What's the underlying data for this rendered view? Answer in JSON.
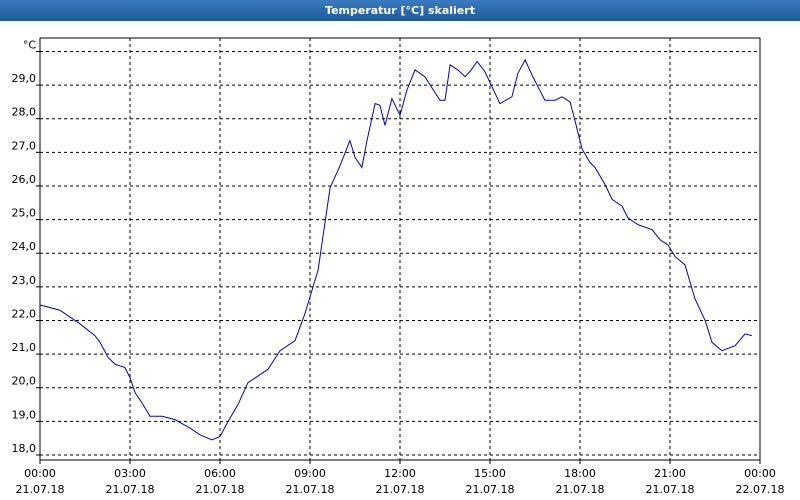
{
  "chart_data": {
    "type": "line",
    "title": "Temperatur [°C] skaliert",
    "x": [
      0,
      0.27,
      0.67,
      1.0,
      1.33,
      1.83,
      2.0,
      2.27,
      2.5,
      2.83,
      3.0,
      3.17,
      3.4,
      3.67,
      4.07,
      4.5,
      5.0,
      5.33,
      5.73,
      6.0,
      6.27,
      6.6,
      6.93,
      7.27,
      7.6,
      8.0,
      8.5,
      8.83,
      9.27,
      9.67,
      10.0,
      10.33,
      10.5,
      10.73,
      10.9,
      11.17,
      11.33,
      11.5,
      11.73,
      12.0,
      12.23,
      12.5,
      12.83,
      13.33,
      13.5,
      13.67,
      13.93,
      14.17,
      14.33,
      14.57,
      14.83,
      15.33,
      15.73,
      15.93,
      16.17,
      16.4,
      16.57,
      16.83,
      17.17,
      17.4,
      17.67,
      17.83,
      18.07,
      18.33,
      18.5,
      18.83,
      19.07,
      19.4,
      19.6,
      19.93,
      20.4,
      20.67,
      20.93,
      21.17,
      21.5,
      21.83,
      22.17,
      22.4,
      22.73,
      23.17,
      23.5,
      23.73
    ],
    "values": [
      22.46,
      22.4,
      22.3,
      22.1,
      21.9,
      21.55,
      21.35,
      20.9,
      20.7,
      20.6,
      20.3,
      19.85,
      19.55,
      19.15,
      19.15,
      19.05,
      18.8,
      18.6,
      18.45,
      18.55,
      19.0,
      19.5,
      20.15,
      20.35,
      20.55,
      21.1,
      21.4,
      22.2,
      23.5,
      25.95,
      26.6,
      27.35,
      26.85,
      26.55,
      27.35,
      28.45,
      28.4,
      27.8,
      28.6,
      28.1,
      28.85,
      29.45,
      29.25,
      28.55,
      28.55,
      29.6,
      29.45,
      29.25,
      29.4,
      29.7,
      29.4,
      28.45,
      28.65,
      29.35,
      29.75,
      29.3,
      29.0,
      28.55,
      28.55,
      28.65,
      28.5,
      27.95,
      27.1,
      26.7,
      26.55,
      26.05,
      25.6,
      25.4,
      25.05,
      24.85,
      24.7,
      24.4,
      24.25,
      23.9,
      23.65,
      22.65,
      22.0,
      21.35,
      21.1,
      21.25,
      21.6,
      21.55
    ],
    "color": "#0000cc",
    "xlim": [
      0,
      24
    ],
    "xticks": [
      {
        "value": 0,
        "label": "00:00"
      },
      {
        "value": 3,
        "label": "03:00"
      },
      {
        "value": 6,
        "label": "06:00"
      },
      {
        "value": 9,
        "label": "09:00"
      },
      {
        "value": 12,
        "label": "12:00"
      },
      {
        "value": 15,
        "label": "15:00"
      },
      {
        "value": 18,
        "label": "18:00"
      },
      {
        "value": 21,
        "label": "21:00"
      },
      {
        "value": 24,
        "label": "00:00"
      }
    ],
    "xtick_dates": [
      "21.07.18",
      "21.07.18",
      "21.07.18",
      "21.07.18",
      "21.07.18",
      "21.07.18",
      "21.07.18",
      "21.07.18",
      "22.07.18"
    ],
    "ylim": [
      17.85,
      30.4
    ],
    "yticks": [
      {
        "value": 18,
        "label": "18,0"
      },
      {
        "value": 19,
        "label": "19,0"
      },
      {
        "value": 20,
        "label": "20,0"
      },
      {
        "value": 21,
        "label": "21,0"
      },
      {
        "value": 22,
        "label": "22,0"
      },
      {
        "value": 23,
        "label": "23,0"
      },
      {
        "value": 24,
        "label": "24,0"
      },
      {
        "value": 25,
        "label": "25,0"
      },
      {
        "value": 26,
        "label": "26,0"
      },
      {
        "value": 27,
        "label": "27,0"
      },
      {
        "value": 28,
        "label": "28,0"
      },
      {
        "value": 29,
        "label": "29,0"
      },
      {
        "value": 30,
        "label": "°C"
      }
    ],
    "grid": true
  }
}
